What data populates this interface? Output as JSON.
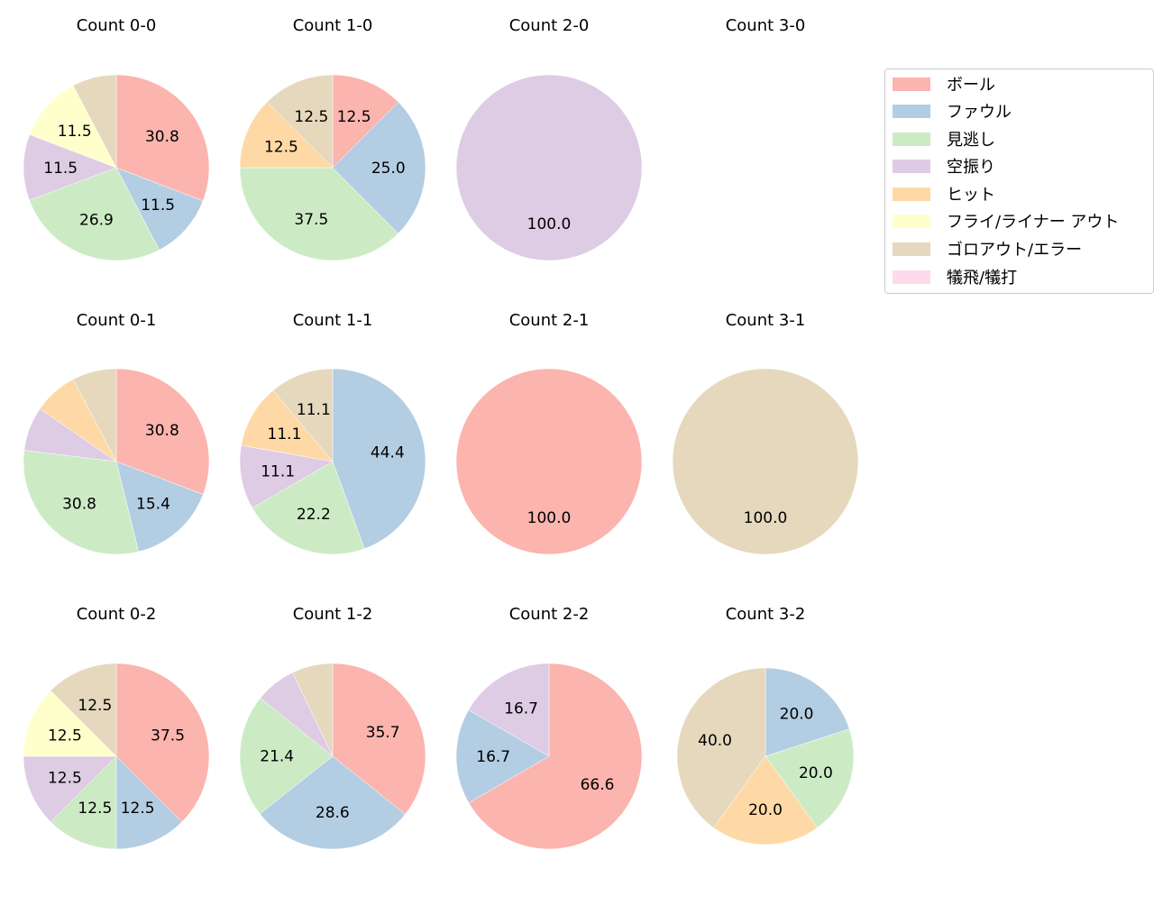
{
  "legend": {
    "items": [
      {
        "label": "ボール",
        "color": "#fbb4ae"
      },
      {
        "label": "ファウル",
        "color": "#b3cde3"
      },
      {
        "label": "見逃し",
        "color": "#ccebc5"
      },
      {
        "label": "空振り",
        "color": "#decbe4"
      },
      {
        "label": "ヒット",
        "color": "#fed9a6"
      },
      {
        "label": "フライ/ライナー アウト",
        "color": "#ffffcc"
      },
      {
        "label": "ゴロアウト/エラー",
        "color": "#e5d8bd"
      },
      {
        "label": "犠飛/犠打",
        "color": "#fddaec"
      }
    ]
  },
  "chart_data": [
    {
      "type": "pie",
      "title": "Count 0-0",
      "col": 0,
      "row": 0,
      "categories": [
        "ボール",
        "ファウル",
        "見逃し",
        "空振り",
        "ヒット",
        "フライ/ライナー アウト",
        "ゴロアウト/エラー",
        "犠飛/犠打"
      ],
      "values": [
        30.8,
        11.5,
        26.9,
        11.5,
        0,
        11.5,
        7.7,
        0
      ]
    },
    {
      "type": "pie",
      "title": "Count 1-0",
      "col": 1,
      "row": 0,
      "categories": [
        "ボール",
        "ファウル",
        "見逃し",
        "空振り",
        "ヒット",
        "フライ/ライナー アウト",
        "ゴロアウト/エラー",
        "犠飛/犠打"
      ],
      "values": [
        12.5,
        25.0,
        37.5,
        0,
        12.5,
        0,
        12.5,
        0
      ]
    },
    {
      "type": "pie",
      "title": "Count 2-0",
      "col": 2,
      "row": 0,
      "categories": [
        "ボール",
        "ファウル",
        "見逃し",
        "空振り",
        "ヒット",
        "フライ/ライナー アウト",
        "ゴロアウト/エラー",
        "犠飛/犠打"
      ],
      "values": [
        0,
        0,
        0,
        100.0,
        0,
        0,
        0,
        0
      ]
    },
    {
      "type": "pie",
      "title": "Count 3-0",
      "col": 3,
      "row": 0,
      "categories": [
        "ボール",
        "ファウル",
        "見逃し",
        "空振り",
        "ヒット",
        "フライ/ライナー アウト",
        "ゴロアウト/エラー",
        "犠飛/犠打"
      ],
      "values": [
        0,
        0,
        0,
        0,
        0,
        0,
        0,
        0
      ]
    },
    {
      "type": "pie",
      "title": "Count 0-1",
      "col": 0,
      "row": 1,
      "categories": [
        "ボール",
        "ファウル",
        "見逃し",
        "空振り",
        "ヒット",
        "フライ/ライナー アウト",
        "ゴロアウト/エラー",
        "犠飛/犠打"
      ],
      "values": [
        30.8,
        15.4,
        30.8,
        7.7,
        7.7,
        0,
        7.7,
        0
      ]
    },
    {
      "type": "pie",
      "title": "Count 1-1",
      "col": 1,
      "row": 1,
      "categories": [
        "ボール",
        "ファウル",
        "見逃し",
        "空振り",
        "ヒット",
        "フライ/ライナー アウト",
        "ゴロアウト/エラー",
        "犠飛/犠打"
      ],
      "values": [
        0,
        44.4,
        22.2,
        11.1,
        11.1,
        0,
        11.1,
        0
      ]
    },
    {
      "type": "pie",
      "title": "Count 2-1",
      "col": 2,
      "row": 1,
      "categories": [
        "ボール",
        "ファウル",
        "見逃し",
        "空振り",
        "ヒット",
        "フライ/ライナー アウト",
        "ゴロアウト/エラー",
        "犠飛/犠打"
      ],
      "values": [
        100.0,
        0,
        0,
        0,
        0,
        0,
        0,
        0
      ]
    },
    {
      "type": "pie",
      "title": "Count 3-1",
      "col": 3,
      "row": 1,
      "categories": [
        "ボール",
        "ファウル",
        "見逃し",
        "空振り",
        "ヒット",
        "フライ/ライナー アウト",
        "ゴロアウト/エラー",
        "犠飛/犠打"
      ],
      "values": [
        0,
        0,
        0,
        0,
        0,
        0,
        100.0,
        0
      ]
    },
    {
      "type": "pie",
      "title": "Count 0-2",
      "col": 0,
      "row": 2,
      "categories": [
        "ボール",
        "ファウル",
        "見逃し",
        "空振り",
        "ヒット",
        "フライ/ライナー アウト",
        "ゴロアウト/エラー",
        "犠飛/犠打"
      ],
      "values": [
        37.5,
        12.5,
        12.5,
        12.5,
        0,
        12.5,
        12.5,
        0
      ]
    },
    {
      "type": "pie",
      "title": "Count 1-2",
      "col": 1,
      "row": 2,
      "categories": [
        "ボール",
        "ファウル",
        "見逃し",
        "空振り",
        "ヒット",
        "フライ/ライナー アウト",
        "ゴロアウト/エラー",
        "犠飛/犠打"
      ],
      "values": [
        35.7,
        28.6,
        21.4,
        7.1,
        0,
        0,
        7.1,
        0
      ]
    },
    {
      "type": "pie",
      "title": "Count 2-2",
      "col": 2,
      "row": 2,
      "categories": [
        "ボール",
        "ファウル",
        "見逃し",
        "空振り",
        "ヒット",
        "フライ/ライナー アウト",
        "ゴロアウト/エラー",
        "犠飛/犠打"
      ],
      "values": [
        66.7,
        16.7,
        0,
        16.7,
        0,
        0,
        0,
        0
      ]
    },
    {
      "type": "pie",
      "title": "Count 3-2",
      "col": 3,
      "row": 2,
      "categories": [
        "ボール",
        "ファウル",
        "見逃し",
        "空振り",
        "ヒット",
        "フライ/ライナー アウト",
        "ゴロアウト/エラー",
        "犠飛/犠打"
      ],
      "values": [
        0,
        20.0,
        20.0,
        0,
        20.0,
        0,
        40.0,
        0
      ]
    }
  ]
}
